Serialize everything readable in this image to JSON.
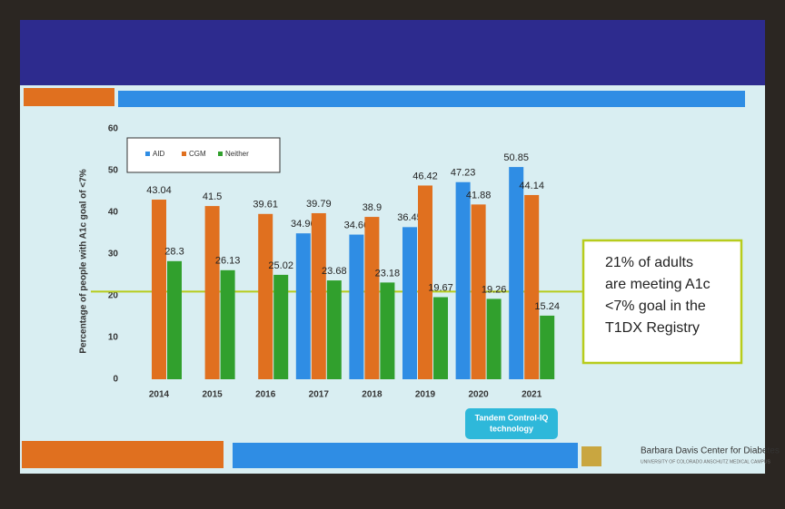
{
  "chart_data": {
    "type": "bar",
    "ylabel": "Percentage of people with A1c goal of <7%",
    "categories": [
      "2014",
      "2015",
      "2016",
      "2017",
      "2018",
      "2019",
      "2020",
      "2021"
    ],
    "series": [
      {
        "name": "AID",
        "color": "#2f8de4",
        "values": [
          null,
          null,
          null,
          34.96,
          34.66,
          36.45,
          47.23,
          50.85
        ]
      },
      {
        "name": "CGM",
        "color": "#e0701f",
        "values": [
          43.04,
          41.5,
          39.61,
          39.79,
          38.9,
          46.42,
          41.88,
          44.14
        ]
      },
      {
        "name": "Neither",
        "color": "#31a02d",
        "values": [
          28.3,
          26.13,
          25.02,
          23.68,
          23.18,
          19.67,
          19.26,
          15.24
        ]
      }
    ],
    "ylim": [
      0,
      60
    ],
    "yticks": [
      0,
      10,
      20,
      30,
      40,
      50,
      60
    ],
    "grid": false,
    "reference_line": 21,
    "reference_color": "#b7cc1c",
    "callout": [
      "21% of adults",
      "are meeting A1c",
      "<7% goal in the",
      "T1DX Registry"
    ],
    "note": [
      "Tandem Control-IQ",
      "technology"
    ]
  },
  "footer": {
    "org": "Barbara Davis Center for Diabetes",
    "sub": "UNIVERSITY OF COLORADO ANSCHUTZ MEDICAL CAMPUS"
  }
}
